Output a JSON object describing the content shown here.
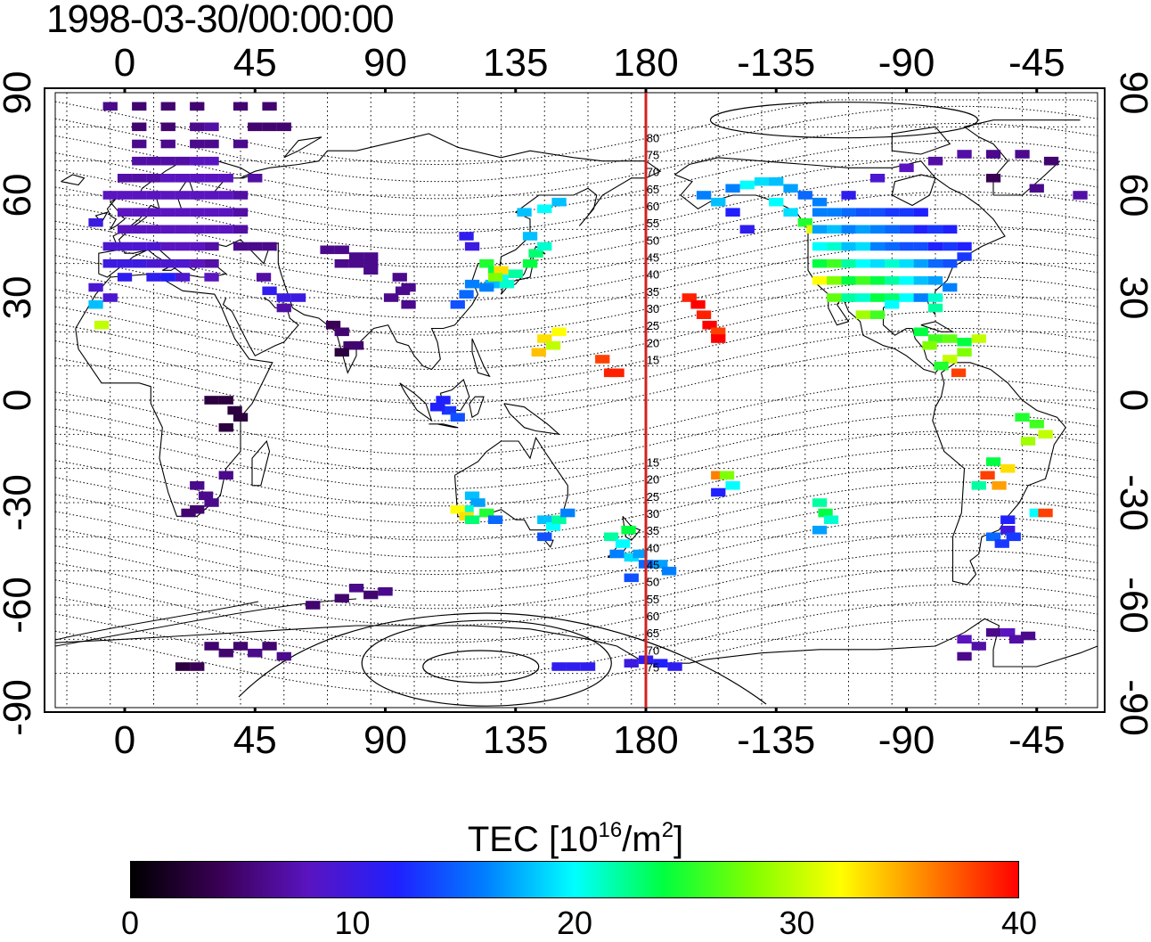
{
  "title": "1998-03-30/00:00:00",
  "axes": {
    "x_top_labels": [
      "0",
      "45",
      "90",
      "135",
      "180",
      "-135",
      "-90",
      "-45"
    ],
    "x_bottom_labels": [
      "0",
      "45",
      "90",
      "135",
      "180",
      "-135",
      "-90",
      "-45"
    ],
    "y_labels": [
      "90",
      "60",
      "30",
      "0",
      "-30",
      "-60",
      "-90"
    ],
    "lon_values": [
      0,
      45,
      90,
      135,
      180,
      225,
      270,
      315
    ],
    "lat_values": [
      90,
      60,
      30,
      0,
      -30,
      -60,
      -90
    ],
    "lon_range": [
      -24,
      336
    ],
    "lat_range": [
      -90,
      90
    ]
  },
  "meridian_marker": {
    "longitude": 180,
    "color": "#d42020"
  },
  "meridian_labels": [
    "80",
    "75",
    "70",
    "65",
    "60",
    "55",
    "50",
    "45",
    "40",
    "35",
    "30",
    "25",
    "20",
    "15",
    "15",
    "20",
    "25",
    "30",
    "35",
    "40",
    "45",
    "50",
    "55",
    "60",
    "65",
    "70",
    "75"
  ],
  "colorbar": {
    "title_main": "TEC  [10",
    "title_sup1": "16",
    "title_mid": "/m",
    "title_sup2": "2",
    "title_end": "]",
    "tick_labels": [
      "0",
      "10",
      "20",
      "30",
      "40"
    ],
    "tick_values": [
      0,
      10,
      20,
      30,
      40
    ],
    "range": [
      0,
      40
    ],
    "colors": [
      "#000000",
      "#3a0055",
      "#5a14c0",
      "#2020ff",
      "#0080ff",
      "#00ffff",
      "#00ff40",
      "#80ff00",
      "#ffff00",
      "#ff8000",
      "#ff0000"
    ]
  },
  "map_data": {
    "type": "heatmap",
    "description_units": "TEC",
    "points": [
      [
        355,
        86,
        6
      ],
      [
        5,
        86,
        5
      ],
      [
        15,
        86,
        5
      ],
      [
        25,
        86,
        5
      ],
      [
        40,
        86,
        5
      ],
      [
        50,
        86,
        5
      ],
      [
        5,
        80,
        5
      ],
      [
        15,
        80,
        5
      ],
      [
        25,
        80,
        6
      ],
      [
        30,
        80,
        7
      ],
      [
        45,
        80,
        5
      ],
      [
        50,
        80,
        5
      ],
      [
        55,
        80,
        5
      ],
      [
        5,
        75,
        6
      ],
      [
        15,
        75,
        6
      ],
      [
        25,
        75,
        6
      ],
      [
        30,
        75,
        6
      ],
      [
        40,
        75,
        6
      ],
      [
        5,
        70,
        7
      ],
      [
        10,
        70,
        7
      ],
      [
        15,
        70,
        7
      ],
      [
        20,
        70,
        7
      ],
      [
        25,
        70,
        8
      ],
      [
        30,
        70,
        8
      ],
      [
        0,
        65,
        7
      ],
      [
        5,
        65,
        7
      ],
      [
        10,
        65,
        7
      ],
      [
        15,
        65,
        8
      ],
      [
        20,
        65,
        8
      ],
      [
        25,
        65,
        8
      ],
      [
        30,
        65,
        8
      ],
      [
        35,
        65,
        8
      ],
      [
        45,
        65,
        7
      ],
      [
        355,
        60,
        8
      ],
      [
        0,
        60,
        8
      ],
      [
        5,
        60,
        8
      ],
      [
        10,
        60,
        8
      ],
      [
        15,
        60,
        8
      ],
      [
        20,
        60,
        8
      ],
      [
        25,
        60,
        8
      ],
      [
        30,
        60,
        8
      ],
      [
        35,
        60,
        8
      ],
      [
        40,
        60,
        7
      ],
      [
        0,
        55,
        8
      ],
      [
        5,
        55,
        8
      ],
      [
        10,
        55,
        8
      ],
      [
        15,
        55,
        8
      ],
      [
        20,
        55,
        8
      ],
      [
        25,
        55,
        8
      ],
      [
        30,
        55,
        8
      ],
      [
        35,
        55,
        8
      ],
      [
        40,
        55,
        7
      ],
      [
        350,
        52,
        10
      ],
      [
        0,
        50,
        8
      ],
      [
        5,
        50,
        8
      ],
      [
        10,
        50,
        8
      ],
      [
        15,
        50,
        8
      ],
      [
        20,
        50,
        8
      ],
      [
        25,
        50,
        8
      ],
      [
        30,
        50,
        8
      ],
      [
        35,
        50,
        8
      ],
      [
        40,
        50,
        7
      ],
      [
        355,
        45,
        9
      ],
      [
        0,
        45,
        9
      ],
      [
        5,
        45,
        9
      ],
      [
        10,
        45,
        9
      ],
      [
        15,
        45,
        8
      ],
      [
        20,
        45,
        8
      ],
      [
        25,
        45,
        8
      ],
      [
        30,
        45,
        7
      ],
      [
        40,
        45,
        6
      ],
      [
        45,
        45,
        6
      ],
      [
        50,
        45,
        6
      ],
      [
        355,
        40,
        10
      ],
      [
        0,
        40,
        10
      ],
      [
        5,
        40,
        10
      ],
      [
        10,
        40,
        9
      ],
      [
        15,
        40,
        9
      ],
      [
        20,
        40,
        9
      ],
      [
        25,
        40,
        8
      ],
      [
        30,
        40,
        7
      ],
      [
        0,
        36,
        11
      ],
      [
        10,
        36,
        11
      ],
      [
        15,
        36,
        12
      ],
      [
        20,
        36,
        9
      ],
      [
        30,
        36,
        8
      ],
      [
        70,
        44,
        6
      ],
      [
        75,
        44,
        6
      ],
      [
        80,
        42,
        6
      ],
      [
        85,
        42,
        6
      ],
      [
        75,
        40,
        6
      ],
      [
        80,
        40,
        6
      ],
      [
        85,
        40,
        6
      ],
      [
        85,
        38,
        6
      ],
      [
        350,
        28,
        18
      ],
      [
        355,
        30,
        9
      ],
      [
        350,
        33,
        9
      ],
      [
        352,
        22,
        30
      ],
      [
        48,
        36,
        7
      ],
      [
        50,
        32,
        11
      ],
      [
        55,
        30,
        10
      ],
      [
        60,
        30,
        10
      ],
      [
        55,
        27,
        7
      ],
      [
        72,
        22,
        4
      ],
      [
        75,
        20,
        5
      ],
      [
        78,
        16,
        5
      ],
      [
        80,
        16,
        5
      ],
      [
        75,
        14,
        3
      ],
      [
        95,
        36,
        6
      ],
      [
        98,
        33,
        6
      ],
      [
        92,
        30,
        6
      ],
      [
        96,
        32,
        6
      ],
      [
        98,
        28,
        6
      ],
      [
        35,
        0,
        3
      ],
      [
        38,
        -3,
        3
      ],
      [
        40,
        -5,
        3
      ],
      [
        35,
        -8,
        3
      ],
      [
        30,
        0,
        3
      ],
      [
        25,
        -25,
        6
      ],
      [
        28,
        -28,
        6
      ],
      [
        30,
        -30,
        6
      ],
      [
        25,
        -32,
        5
      ],
      [
        22,
        -33,
        5
      ],
      [
        35,
        -22,
        6
      ],
      [
        110,
        0,
        12
      ],
      [
        112,
        -3,
        13
      ],
      [
        115,
        -5,
        14
      ],
      [
        108,
        -2,
        12
      ],
      [
        120,
        -28,
        18
      ],
      [
        122,
        -30,
        17
      ],
      [
        118,
        -32,
        21
      ],
      [
        115,
        -32,
        32
      ],
      [
        118,
        -34,
        33
      ],
      [
        120,
        -35,
        23
      ],
      [
        125,
        -33,
        25
      ],
      [
        128,
        -35,
        15
      ],
      [
        145,
        -35,
        18
      ],
      [
        148,
        -37,
        20
      ],
      [
        150,
        -35,
        22
      ],
      [
        145,
        -40,
        14
      ],
      [
        153,
        -33,
        16
      ],
      [
        168,
        -40,
        22
      ],
      [
        172,
        -42,
        20
      ],
      [
        174,
        -38,
        24
      ],
      [
        170,
        -45,
        16
      ],
      [
        175,
        -46,
        19
      ],
      [
        178,
        -45,
        17
      ],
      [
        180,
        -48,
        15
      ],
      [
        185,
        -48,
        17
      ],
      [
        188,
        -50,
        16
      ],
      [
        175,
        -52,
        14
      ],
      [
        145,
        18,
        33
      ],
      [
        148,
        16,
        30
      ],
      [
        150,
        20,
        32
      ],
      [
        143,
        14,
        34
      ],
      [
        165,
        12,
        38
      ],
      [
        170,
        8,
        39
      ],
      [
        168,
        8,
        39
      ],
      [
        195,
        30,
        39
      ],
      [
        198,
        28,
        40
      ],
      [
        200,
        25,
        39
      ],
      [
        202,
        22,
        40
      ],
      [
        205,
        20,
        38
      ],
      [
        205,
        18,
        40
      ],
      [
        205,
        -22,
        36
      ],
      [
        208,
        -22,
        28
      ],
      [
        210,
        -25,
        20
      ],
      [
        205,
        -27,
        12
      ],
      [
        240,
        -30,
        22
      ],
      [
        242,
        -33,
        24
      ],
      [
        244,
        -35,
        21
      ],
      [
        240,
        -38,
        17
      ],
      [
        125,
        40,
        25
      ],
      [
        128,
        38,
        24
      ],
      [
        130,
        36,
        20
      ],
      [
        132,
        34,
        21
      ],
      [
        127,
        34,
        18
      ],
      [
        135,
        37,
        22
      ],
      [
        140,
        40,
        24
      ],
      [
        142,
        43,
        23
      ],
      [
        145,
        45,
        21
      ],
      [
        140,
        48,
        18
      ],
      [
        138,
        55,
        18
      ],
      [
        145,
        56,
        20
      ],
      [
        150,
        58,
        18
      ],
      [
        130,
        38,
        33
      ],
      [
        128,
        36,
        28
      ],
      [
        125,
        33,
        16
      ],
      [
        120,
        34,
        16
      ],
      [
        118,
        31,
        15
      ],
      [
        115,
        28,
        14
      ],
      [
        120,
        45,
        10
      ],
      [
        118,
        48,
        11
      ],
      [
        200,
        60,
        16
      ],
      [
        205,
        58,
        18
      ],
      [
        210,
        62,
        16
      ],
      [
        215,
        63,
        20
      ],
      [
        220,
        64,
        19
      ],
      [
        225,
        64,
        18
      ],
      [
        230,
        62,
        17
      ],
      [
        235,
        60,
        15
      ],
      [
        240,
        58,
        16
      ],
      [
        210,
        55,
        12
      ],
      [
        215,
        50,
        11
      ],
      [
        225,
        58,
        20
      ],
      [
        230,
        55,
        19
      ],
      [
        235,
        52,
        25
      ],
      [
        238,
        50,
        31
      ],
      [
        240,
        50,
        17
      ],
      [
        245,
        50,
        18
      ],
      [
        250,
        50,
        16
      ],
      [
        255,
        50,
        17
      ],
      [
        260,
        50,
        16
      ],
      [
        265,
        50,
        15
      ],
      [
        270,
        50,
        14
      ],
      [
        275,
        50,
        12
      ],
      [
        280,
        50,
        13
      ],
      [
        285,
        50,
        12
      ],
      [
        240,
        45,
        20
      ],
      [
        245,
        45,
        21
      ],
      [
        250,
        45,
        18
      ],
      [
        255,
        45,
        19
      ],
      [
        260,
        45,
        16
      ],
      [
        265,
        45,
        15
      ],
      [
        270,
        45,
        14
      ],
      [
        275,
        45,
        14
      ],
      [
        280,
        45,
        12
      ],
      [
        285,
        45,
        13
      ],
      [
        290,
        45,
        12
      ],
      [
        240,
        40,
        24
      ],
      [
        245,
        40,
        26
      ],
      [
        250,
        40,
        22
      ],
      [
        255,
        40,
        20
      ],
      [
        260,
        40,
        19
      ],
      [
        265,
        40,
        21
      ],
      [
        270,
        40,
        19
      ],
      [
        275,
        40,
        17
      ],
      [
        280,
        40,
        15
      ],
      [
        285,
        40,
        14
      ],
      [
        290,
        42,
        13
      ],
      [
        240,
        35,
        32
      ],
      [
        245,
        35,
        28
      ],
      [
        250,
        35,
        24
      ],
      [
        255,
        35,
        26
      ],
      [
        260,
        35,
        24
      ],
      [
        265,
        35,
        22
      ],
      [
        270,
        35,
        20
      ],
      [
        275,
        35,
        18
      ],
      [
        280,
        35,
        17
      ],
      [
        285,
        33,
        16
      ],
      [
        245,
        30,
        27
      ],
      [
        250,
        30,
        22
      ],
      [
        255,
        30,
        21
      ],
      [
        260,
        30,
        24
      ],
      [
        265,
        30,
        23
      ],
      [
        270,
        30,
        20
      ],
      [
        275,
        30,
        16
      ],
      [
        280,
        30,
        21
      ],
      [
        255,
        25,
        29
      ],
      [
        260,
        25,
        26
      ],
      [
        265,
        28,
        20
      ],
      [
        280,
        27,
        22
      ],
      [
        240,
        55,
        16
      ],
      [
        245,
        55,
        16
      ],
      [
        250,
        55,
        15
      ],
      [
        255,
        55,
        14
      ],
      [
        260,
        55,
        14
      ],
      [
        265,
        55,
        13
      ],
      [
        270,
        55,
        13
      ],
      [
        275,
        55,
        12
      ],
      [
        250,
        60,
        11
      ],
      [
        260,
        65,
        9
      ],
      [
        270,
        68,
        8
      ],
      [
        280,
        70,
        7
      ],
      [
        290,
        72,
        7
      ],
      [
        300,
        72,
        6
      ],
      [
        310,
        72,
        6
      ],
      [
        320,
        70,
        5
      ],
      [
        300,
        65,
        4
      ],
      [
        315,
        62,
        6
      ],
      [
        330,
        60,
        7
      ],
      [
        275,
        20,
        24
      ],
      [
        280,
        18,
        26
      ],
      [
        285,
        18,
        27
      ],
      [
        290,
        17,
        24
      ],
      [
        295,
        18,
        30
      ],
      [
        290,
        14,
        28
      ],
      [
        285,
        12,
        30
      ],
      [
        288,
        8,
        38
      ],
      [
        282,
        10,
        25
      ],
      [
        278,
        16,
        28
      ],
      [
        310,
        -5,
        25
      ],
      [
        315,
        -7,
        26
      ],
      [
        318,
        -10,
        30
      ],
      [
        312,
        -12,
        29
      ],
      [
        300,
        -18,
        24
      ],
      [
        305,
        -20,
        33
      ],
      [
        298,
        -22,
        38
      ],
      [
        302,
        -25,
        35
      ],
      [
        295,
        -25,
        22
      ],
      [
        305,
        -35,
        12
      ],
      [
        305,
        -38,
        10
      ],
      [
        307,
        -40,
        13
      ],
      [
        300,
        -40,
        15
      ],
      [
        303,
        -42,
        13
      ],
      [
        315,
        -33,
        20
      ],
      [
        318,
        -33,
        38
      ],
      [
        300,
        -68,
        6
      ],
      [
        305,
        -68,
        8
      ],
      [
        308,
        -70,
        7
      ],
      [
        312,
        -69,
        6
      ],
      [
        295,
        -72,
        7
      ],
      [
        290,
        -70,
        8
      ],
      [
        290,
        -75,
        6
      ],
      [
        150,
        -78,
        11
      ],
      [
        155,
        -78,
        11
      ],
      [
        160,
        -78,
        11
      ],
      [
        175,
        -77,
        10
      ],
      [
        180,
        -76,
        11
      ],
      [
        185,
        -77,
        12
      ],
      [
        190,
        -78,
        11
      ],
      [
        30,
        -72,
        5
      ],
      [
        35,
        -74,
        5
      ],
      [
        40,
        -72,
        5
      ],
      [
        45,
        -74,
        6
      ],
      [
        50,
        -72,
        5
      ],
      [
        55,
        -75,
        6
      ],
      [
        20,
        -78,
        3
      ],
      [
        25,
        -78,
        4
      ],
      [
        75,
        -58,
        5
      ],
      [
        80,
        -55,
        6
      ],
      [
        85,
        -57,
        5
      ],
      [
        90,
        -56,
        6
      ],
      [
        65,
        -60,
        5
      ]
    ]
  }
}
